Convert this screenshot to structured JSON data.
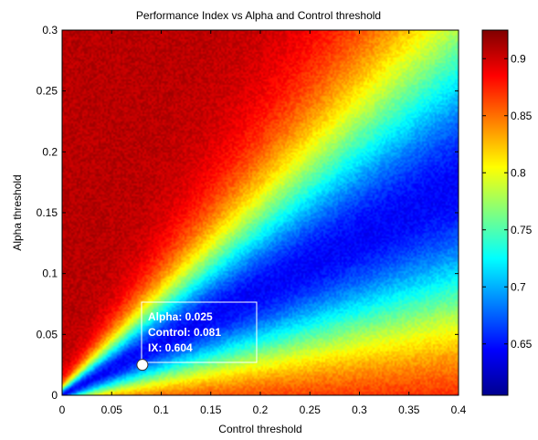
{
  "chart_data": {
    "type": "heatmap",
    "title": "Performance Index vs Alpha and Control threshold",
    "xlabel": "Control threshold",
    "ylabel": "Alpha threshold",
    "xlim": [
      0,
      0.4
    ],
    "ylim": [
      0,
      0.3
    ],
    "xticks": [
      "0",
      "0.05",
      "0.1",
      "0.15",
      "0.2",
      "0.25",
      "0.3",
      "0.35",
      "0.4"
    ],
    "yticks": [
      "0",
      "0.05",
      "0.1",
      "0.15",
      "0.2",
      "0.25",
      "0.3"
    ],
    "colormap": "jet",
    "colorbar": {
      "clim": [
        0.605,
        0.925
      ],
      "ticks": [
        "0.65",
        "0.7",
        "0.75",
        "0.8",
        "0.85",
        "0.9"
      ]
    },
    "description_of_field": {
      "valley_ratio_alpha_per_control": 0.43,
      "min_value": 0.605,
      "max_value": 0.925,
      "low_region": "diagonal band from origin up to upper-right",
      "high_regions": [
        "top-left corner",
        "bottom-right corner"
      ]
    },
    "datatip": {
      "alpha": 0.025,
      "control": 0.081,
      "ix": 0.604,
      "lines": [
        "Alpha: 0.025",
        "Control: 0.081",
        "IX: 0.604"
      ]
    }
  }
}
